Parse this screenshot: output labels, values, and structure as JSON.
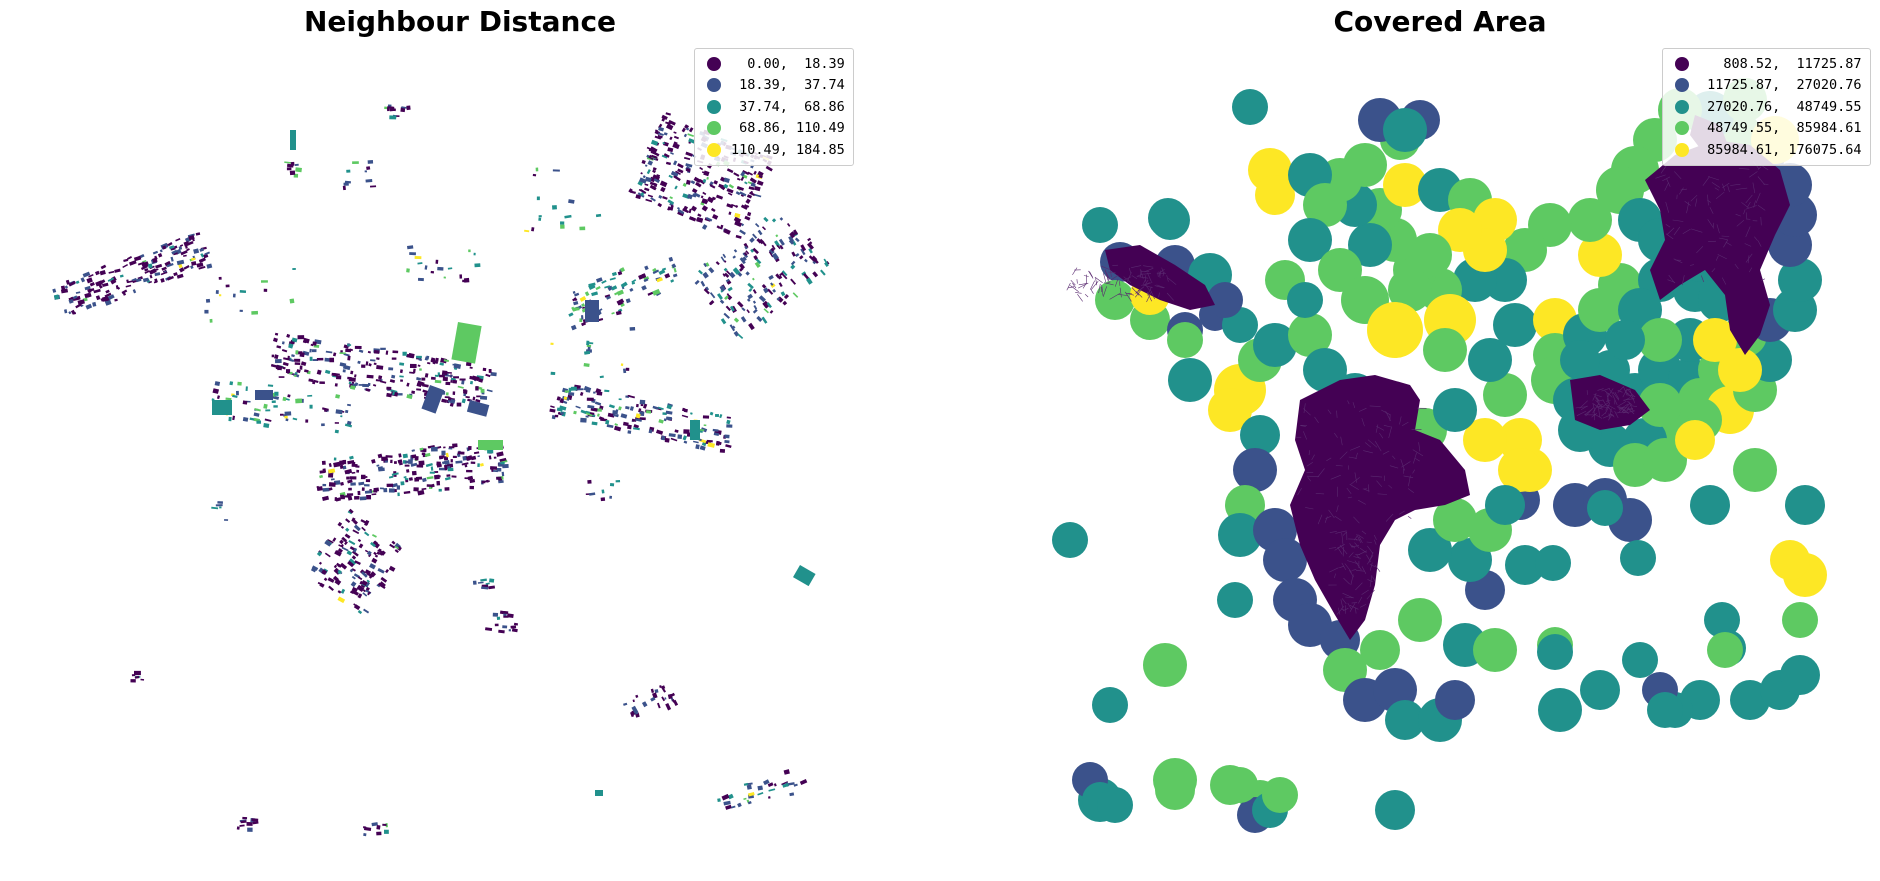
{
  "colors": {
    "c1": "#440154",
    "c2": "#3b528b",
    "c3": "#21918c",
    "c4": "#5ec962",
    "c5": "#fde725"
  },
  "left_map": {
    "title": "Neighbour Distance",
    "legend": [
      {
        "label": "  0.00,  18.39",
        "color": "#440154"
      },
      {
        "label": " 18.39,  37.74",
        "color": "#3b528b"
      },
      {
        "label": " 37.74,  68.86",
        "color": "#21918c"
      },
      {
        "label": " 68.86, 110.49",
        "color": "#5ec962"
      },
      {
        "label": "110.49, 184.85",
        "color": "#fde725"
      }
    ]
  },
  "right_map": {
    "title": "Covered Area",
    "legend": [
      {
        "label": "   808.52,  11725.87",
        "color": "#440154"
      },
      {
        "label": " 11725.87,  27020.76",
        "color": "#3b528b"
      },
      {
        "label": " 27020.76,  48749.55",
        "color": "#21918c"
      },
      {
        "label": " 48749.55,  85984.61",
        "color": "#5ec962"
      },
      {
        "label": " 85984.61, 176075.64",
        "color": "#fde725"
      }
    ]
  }
}
